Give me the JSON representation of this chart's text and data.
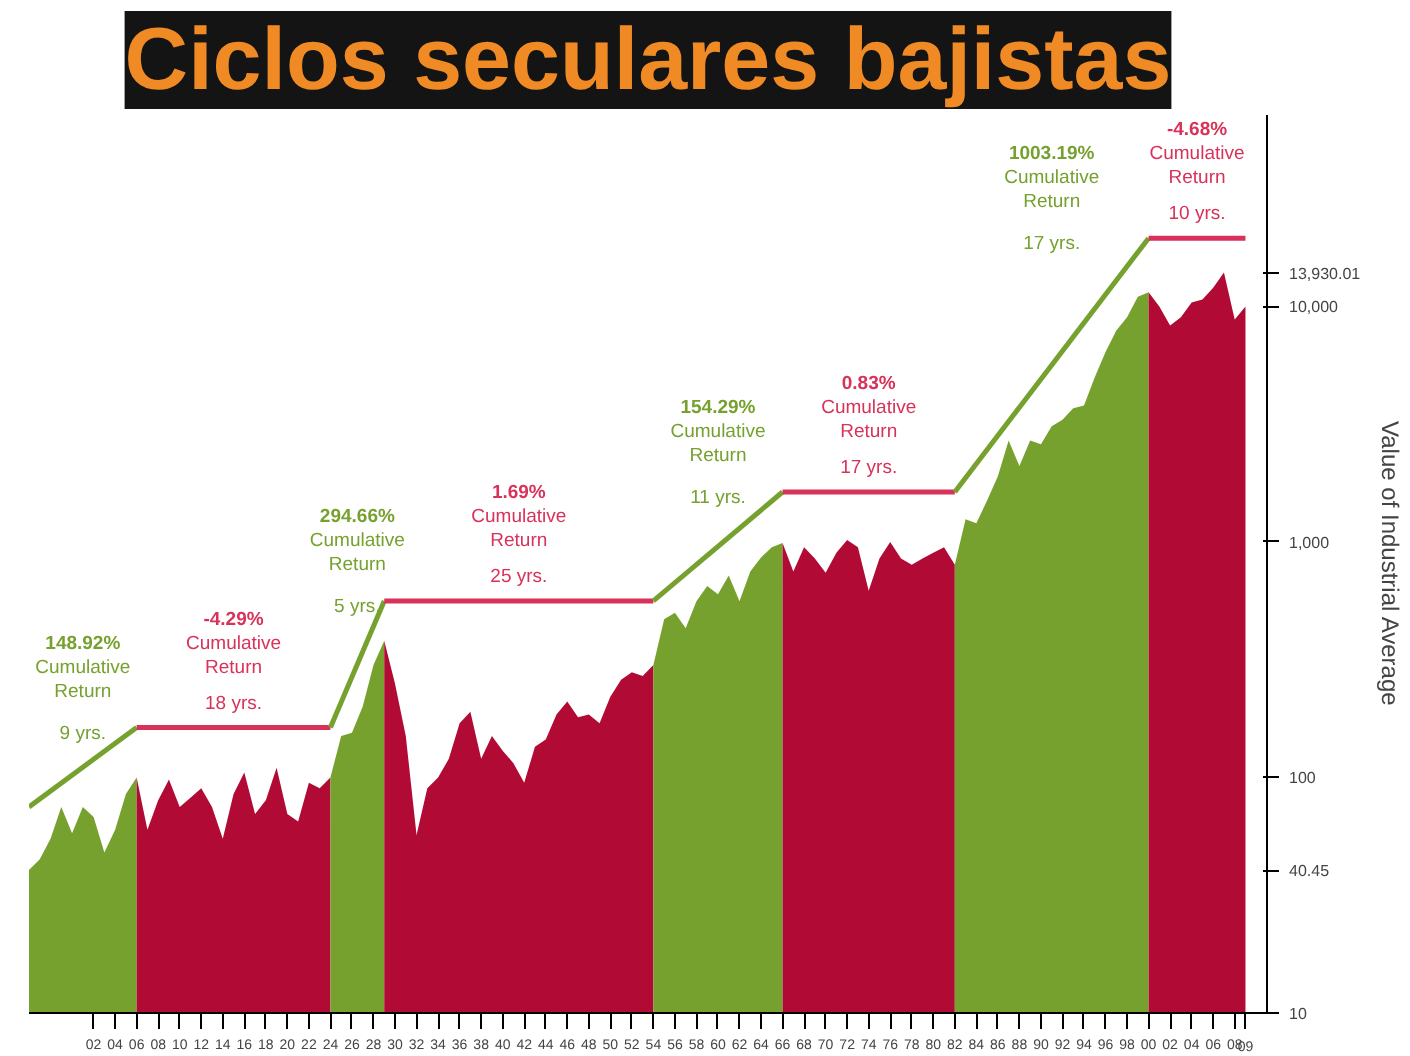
{
  "chart_data": {
    "type": "area",
    "title": "Ciclos seculares bajistas",
    "ylabel": "Value of Industrial Average",
    "log": "y",
    "grid": false,
    "xlim": [
      1896,
      2011
    ],
    "ylim": [
      10,
      65000
    ],
    "xticks": [
      {
        "value": 1902,
        "label": "02"
      },
      {
        "value": 1904,
        "label": "04"
      },
      {
        "value": 1906,
        "label": "06"
      },
      {
        "value": 1908,
        "label": "08"
      },
      {
        "value": 1910,
        "label": "10"
      },
      {
        "value": 1912,
        "label": "12"
      },
      {
        "value": 1914,
        "label": "14"
      },
      {
        "value": 1916,
        "label": "16"
      },
      {
        "value": 1918,
        "label": "18"
      },
      {
        "value": 1920,
        "label": "20"
      },
      {
        "value": 1922,
        "label": "22"
      },
      {
        "value": 1924,
        "label": "24"
      },
      {
        "value": 1926,
        "label": "26"
      },
      {
        "value": 1928,
        "label": "28"
      },
      {
        "value": 1930,
        "label": "30"
      },
      {
        "value": 1932,
        "label": "32"
      },
      {
        "value": 1934,
        "label": "34"
      },
      {
        "value": 1936,
        "label": "36"
      },
      {
        "value": 1938,
        "label": "38"
      },
      {
        "value": 1940,
        "label": "40"
      },
      {
        "value": 1942,
        "label": "42"
      },
      {
        "value": 1944,
        "label": "44"
      },
      {
        "value": 1946,
        "label": "46"
      },
      {
        "value": 1948,
        "label": "48"
      },
      {
        "value": 1950,
        "label": "50"
      },
      {
        "value": 1952,
        "label": "52"
      },
      {
        "value": 1954,
        "label": "54"
      },
      {
        "value": 1956,
        "label": "56"
      },
      {
        "value": 1958,
        "label": "58"
      },
      {
        "value": 1960,
        "label": "60"
      },
      {
        "value": 1962,
        "label": "62"
      },
      {
        "value": 1964,
        "label": "64"
      },
      {
        "value": 1966,
        "label": "66"
      },
      {
        "value": 1968,
        "label": "68"
      },
      {
        "value": 1970,
        "label": "70"
      },
      {
        "value": 1972,
        "label": "72"
      },
      {
        "value": 1974,
        "label": "74"
      },
      {
        "value": 1976,
        "label": "76"
      },
      {
        "value": 1978,
        "label": "78"
      },
      {
        "value": 1980,
        "label": "80"
      },
      {
        "value": 1982,
        "label": "82"
      },
      {
        "value": 1984,
        "label": "84"
      },
      {
        "value": 1986,
        "label": "86"
      },
      {
        "value": 1988,
        "label": "88"
      },
      {
        "value": 1990,
        "label": "90"
      },
      {
        "value": 1992,
        "label": "92"
      },
      {
        "value": 1994,
        "label": "94"
      },
      {
        "value": 1996,
        "label": "96"
      },
      {
        "value": 1998,
        "label": "98"
      },
      {
        "value": 2000,
        "label": "00"
      },
      {
        "value": 2002,
        "label": "02"
      },
      {
        "value": 2004,
        "label": "04"
      },
      {
        "value": 2006,
        "label": "06"
      },
      {
        "value": 2008,
        "label": "08"
      },
      {
        "value": 2009,
        "label": "09"
      }
    ],
    "yticks": [
      10,
      40.45,
      100,
      {
        "value": 1000,
        "label": "1,000"
      },
      {
        "value": 10000,
        "label": "10,000"
      },
      {
        "value": 13930.01,
        "label": "13,930.01"
      }
    ],
    "series": [
      {
        "color": "#76a12f",
        "x": [
          1896,
          1897,
          1898,
          1899,
          1900,
          1901,
          1902,
          1903,
          1904,
          1905,
          1906
        ],
        "values": [
          40.45,
          45,
          55,
          75,
          58,
          75,
          68,
          48,
          60,
          85,
          100
        ]
      },
      {
        "color": "#b10a35",
        "x": [
          1906,
          1907,
          1908,
          1909,
          1910,
          1911,
          1912,
          1913,
          1914,
          1915,
          1916,
          1917,
          1918,
          1919,
          1920,
          1921,
          1922,
          1923,
          1924
        ],
        "values": [
          100,
          60,
          80,
          98,
          75,
          82,
          90,
          75,
          55,
          85,
          105,
          70,
          80,
          110,
          70,
          65,
          95,
          90,
          100
        ]
      },
      {
        "color": "#76a12f",
        "x": [
          1924,
          1925,
          1926,
          1927,
          1928,
          1929
        ],
        "values": [
          100,
          150,
          155,
          200,
          300,
          381
        ]
      },
      {
        "color": "#b10a35",
        "x": [
          1929,
          1930,
          1931,
          1932,
          1933,
          1934,
          1935,
          1936,
          1937,
          1938,
          1939,
          1940,
          1941,
          1942,
          1943,
          1944,
          1945,
          1946,
          1947,
          1948,
          1949,
          1950,
          1951,
          1952,
          1953,
          1954
        ],
        "values": [
          381,
          250,
          150,
          57,
          90,
          100,
          120,
          170,
          190,
          120,
          150,
          130,
          115,
          95,
          135,
          145,
          185,
          210,
          180,
          185,
          170,
          220,
          260,
          280,
          270,
          300
        ]
      },
      {
        "color": "#76a12f",
        "x": [
          1954,
          1955,
          1956,
          1957,
          1958,
          1959,
          1960,
          1961,
          1962,
          1963,
          1964,
          1965,
          1966
        ],
        "values": [
          300,
          470,
          500,
          430,
          560,
          650,
          600,
          720,
          560,
          750,
          860,
          950,
          990
        ]
      },
      {
        "color": "#b10a35",
        "x": [
          1966,
          1967,
          1968,
          1969,
          1970,
          1971,
          1972,
          1973,
          1974,
          1975,
          1976,
          1977,
          1978,
          1979,
          1980,
          1981,
          1982
        ],
        "values": [
          990,
          750,
          950,
          850,
          740,
          900,
          1020,
          950,
          620,
          850,
          1000,
          850,
          800,
          850,
          900,
          950,
          800
        ]
      },
      {
        "color": "#76a12f",
        "x": [
          1982,
          1983,
          1984,
          1985,
          1986,
          1987,
          1988,
          1989,
          1990,
          1991,
          1992,
          1993,
          1994,
          1995,
          1996,
          1997,
          1998,
          1999,
          2000
        ],
        "values": [
          800,
          1250,
          1200,
          1500,
          1900,
          2700,
          2100,
          2700,
          2600,
          3100,
          3300,
          3700,
          3800,
          5000,
          6400,
          7900,
          9000,
          11000,
          11500
        ]
      },
      {
        "color": "#b10a35",
        "x": [
          2000,
          2001,
          2002,
          2003,
          2004,
          2005,
          2006,
          2007,
          2008,
          2009
        ],
        "values": [
          11500,
          10000,
          8300,
          9000,
          10400,
          10700,
          12000,
          13930.01,
          8800,
          10000
        ]
      },
      {
        "type": "line",
        "color": "#76a12f",
        "x": [
          1896,
          1906
        ],
        "values": [
          75,
          163
        ]
      },
      {
        "type": "line",
        "color": "#d9325a",
        "x": [
          1906,
          1924
        ],
        "values": [
          163,
          163
        ]
      },
      {
        "type": "line",
        "color": "#76a12f",
        "x": [
          1924,
          1929
        ],
        "values": [
          163,
          562
        ]
      },
      {
        "type": "line",
        "color": "#d9325a",
        "x": [
          1929,
          1954
        ],
        "values": [
          562,
          562
        ]
      },
      {
        "type": "line",
        "color": "#76a12f",
        "x": [
          1954,
          1966
        ],
        "values": [
          562,
          1630
        ]
      },
      {
        "type": "line",
        "color": "#d9325a",
        "x": [
          1966,
          1982
        ],
        "values": [
          1630,
          1630
        ]
      },
      {
        "type": "line",
        "color": "#76a12f",
        "x": [
          1982,
          2000
        ],
        "values": [
          1630,
          19500
        ]
      },
      {
        "type": "line",
        "color": "#d9325a",
        "x": [
          2000,
          2009
        ],
        "values": [
          19500,
          19500
        ]
      }
    ],
    "annotations": [
      "148.92%\nCumulative\nReturn",
      "9 yrs.",
      "-4.29%\nCumulative\nReturn",
      "18 yrs.",
      "294.66%\nCumulative\nReturn",
      "5 yrs.",
      "1.69%\nCumulative\nReturn",
      "25 yrs.",
      "154.29%\nCumulative\nReturn",
      "11 yrs.",
      "0.83%\nCumulative\nReturn",
      "17 yrs.",
      "1003.19%\nCumulative\nReturn",
      "17 yrs.",
      "-4.68%\nCumulative\nReturn",
      "10 yrs."
    ]
  }
}
